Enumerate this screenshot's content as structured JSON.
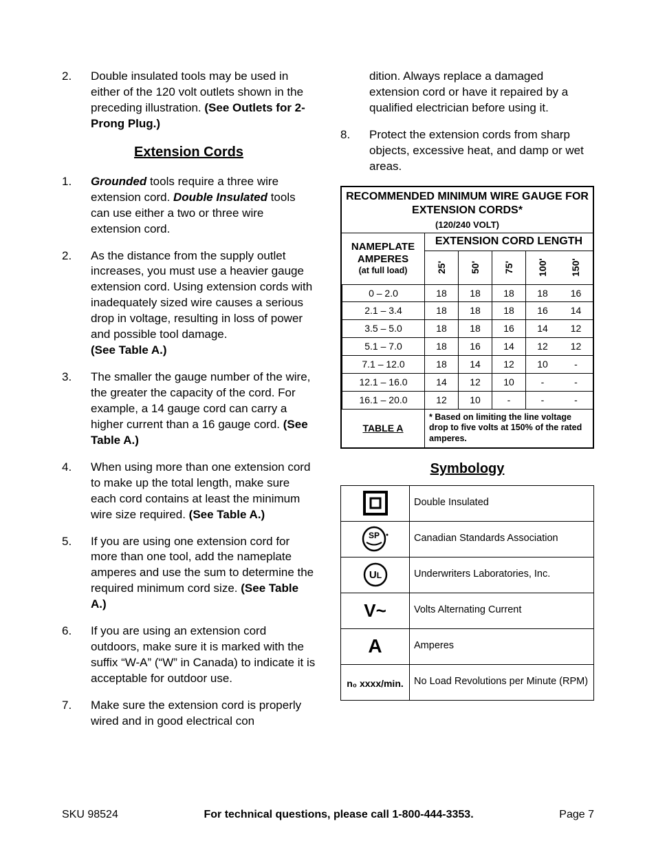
{
  "leftTop": {
    "num": "2.",
    "text": "Double insulated tools may be used in either of the 120 volt outlets shown in the preceding illustration.  ",
    "boldTail": "(See Outlets for 2-Prong Plug.)"
  },
  "extHeading": "Extension Cords",
  "extItems": [
    {
      "num": "1.",
      "html": "<b><i>Grounded</i></b> tools require a three wire extension cord.  <b><i>Double Insulated</i></b> tools can use either a two or three wire extension cord."
    },
    {
      "num": "2.",
      "html": "As the distance from the supply outlet increases, you must use a heavier gauge extension cord.  Using extension cords with inadequately sized wire causes a serious drop in voltage, resulting in loss of power and possible tool damage.<br><b>(See Table A.)</b>"
    },
    {
      "num": "3.",
      "html": "The smaller the gauge number of the wire, the greater the capacity of the cord.  For example, a 14 gauge cord can carry a higher current than a 16 gauge cord.  <b>(See Table A.)</b>"
    },
    {
      "num": "4.",
      "html": "When using more than one extension cord to make up the total length, make sure each cord contains at least the minimum wire size required.  <b>(See Table A.)</b>"
    },
    {
      "num": "5.",
      "html": "If you are using one extension cord for more than one tool, add the nameplate amperes and use the sum to determine the required minimum cord size.  <b>(See Table A.)</b>"
    },
    {
      "num": "6.",
      "html": "If you are using an extension cord outdoors, make sure it is marked with the suffix “W-A” (“W” in Canada) to indicate it is acceptable for outdoor use."
    },
    {
      "num": "7.",
      "html": "Make sure the extension cord is properly wired and in good electrical con"
    }
  ],
  "rightTopCont": "dition.  Always replace a damaged extension cord or have it repaired by a qualified electrician before using it.",
  "rightItem8": {
    "num": "8.",
    "text": "Protect the extension cords from sharp objects, excessive heat, and damp or wet areas."
  },
  "wireTable": {
    "title": "RECOMMENDED MINIMUM WIRE GAUGE FOR EXTENSION CORDS*",
    "subtitle": "(120/240 VOLT)",
    "nameplateLine1": "NAMEPLATE",
    "nameplateLine2": "AMPERES",
    "nameplateLine3": "(at full load)",
    "extLenHead": "EXTENSION CORD LENGTH",
    "lengths": [
      "25'",
      "50'",
      "75'",
      "100'",
      "150'"
    ],
    "rows": [
      {
        "range": "0 – 2.0",
        "v": [
          "18",
          "18",
          "18",
          "18",
          "16"
        ]
      },
      {
        "range": "2.1 – 3.4",
        "v": [
          "18",
          "18",
          "18",
          "16",
          "14"
        ]
      },
      {
        "range": "3.5 – 5.0",
        "v": [
          "18",
          "18",
          "16",
          "14",
          "12"
        ]
      },
      {
        "range": "5.1 – 7.0",
        "v": [
          "18",
          "16",
          "14",
          "12",
          "12"
        ]
      },
      {
        "range": "7.1 – 12.0",
        "v": [
          "18",
          "14",
          "12",
          "10",
          "-"
        ]
      },
      {
        "range": "12.1 – 16.0",
        "v": [
          "14",
          "12",
          "10",
          "-",
          "-"
        ]
      },
      {
        "range": "16.1 – 20.0",
        "v": [
          "12",
          "10",
          "-",
          "-",
          "-"
        ]
      }
    ],
    "footerLabel": "TABLE A",
    "footerNote": "* Based on limiting the line voltage drop to five volts at 150% of the rated amperes."
  },
  "symHeading": "Symbology",
  "symRows": [
    {
      "icon": "double-insulated",
      "label": "Double Insulated"
    },
    {
      "icon": "csa",
      "label": "Canadian Standards Association"
    },
    {
      "icon": "ul",
      "label": "Underwriters Laboratories, Inc."
    },
    {
      "icon": "vac",
      "label": "Volts Alternating Current"
    },
    {
      "icon": "amp",
      "label": "Amperes"
    },
    {
      "icon": "rpm",
      "label": "No Load Revolutions per Minute (RPM)"
    }
  ],
  "rpmIconText": "n₀ xxxx/min.",
  "footer": {
    "sku": "SKU 98524",
    "mid": "For technical questions, please call 1-800-444-3353.",
    "page": "Page 7"
  },
  "colors": {
    "text": "#000000",
    "bg": "#ffffff",
    "border": "#000000"
  }
}
